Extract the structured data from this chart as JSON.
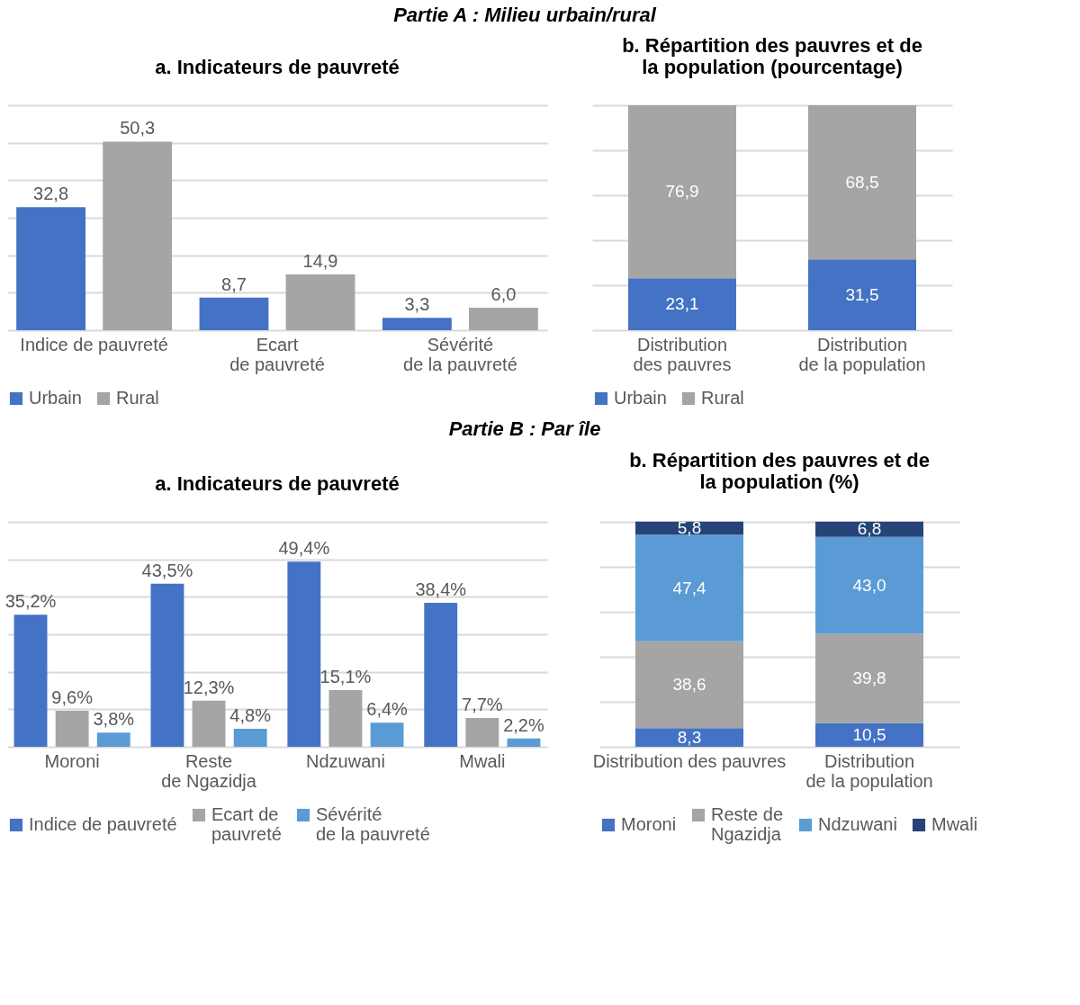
{
  "chart_data": [
    {
      "type": "bar",
      "title": "a. Indicateurs de pauvreté",
      "annotations": [
        "Partie A : Milieu urbain/rural"
      ],
      "categories": [
        "Indice de pauvreté",
        "Ecart\nde pauvreté",
        "Sévérité\nde la pauvreté"
      ],
      "series": [
        {
          "name": "Urbain",
          "color": "#4472c4",
          "values": [
            32.8,
            8.7,
            3.3
          ],
          "value_labels": [
            "32,8",
            "8,7",
            "3,3"
          ]
        },
        {
          "name": "Rural",
          "color": "#a5a5a5",
          "values": [
            50.3,
            14.9,
            6.0
          ],
          "value_labels": [
            "50,3",
            "14,9",
            "6,0"
          ]
        }
      ],
      "ylim": [
        0,
        60
      ],
      "yticks": [
        {
          "value": 0,
          "label": null
        },
        {
          "value": 10,
          "label": null
        },
        {
          "value": 20,
          "label": null
        },
        {
          "value": 30,
          "label": null
        },
        {
          "value": 40,
          "label": null
        },
        {
          "value": 50,
          "label": null
        },
        {
          "value": 60,
          "label": null
        }
      ],
      "grid": "y",
      "tick_labels": "x",
      "legend": "bottom"
    },
    {
      "type": "bar",
      "title": "b. Répartition des pauvres et de la population (pourcentage)",
      "stacked": true,
      "categories": [
        "Distribution\ndes pauvres",
        "Distribution\nde la population"
      ],
      "series": [
        {
          "name": "Urbain",
          "color": "#4472c4",
          "values": [
            23.1,
            31.5
          ],
          "value_labels": [
            "23,1",
            "31,5"
          ]
        },
        {
          "name": "Rural",
          "color": "#a5a5a5",
          "values": [
            76.9,
            68.5
          ],
          "value_labels": [
            "76,9",
            "68,5"
          ]
        }
      ],
      "ylim": [
        0,
        100
      ],
      "yticks": [
        {
          "value": 0,
          "label": null
        },
        {
          "value": 20,
          "label": null
        },
        {
          "value": 40,
          "label": null
        },
        {
          "value": 60,
          "label": null
        },
        {
          "value": 80,
          "label": null
        },
        {
          "value": 100,
          "label": null
        }
      ],
      "grid": "y",
      "tick_labels": "x",
      "legend": "bottom"
    },
    {
      "type": "bar",
      "title": "a. Indicateurs de pauvreté",
      "annotations": [
        "Partie B : Par île"
      ],
      "categories": [
        "Moroni",
        "Reste\nde Ngazidja",
        "Ndzuwani",
        "Mwali"
      ],
      "series": [
        {
          "name": "Indice de pauvreté",
          "color": "#4472c4",
          "values": [
            35.2,
            43.5,
            49.4,
            38.4
          ],
          "value_labels": [
            "35,2%",
            "43,5%",
            "49,4%",
            "38,4%"
          ]
        },
        {
          "name": "Ecart de\npauvreté",
          "color": "#a5a5a5",
          "values": [
            9.6,
            12.3,
            15.1,
            7.7
          ],
          "value_labels": [
            "9,6%",
            "12,3%",
            "15,1%",
            "7,7%"
          ]
        },
        {
          "name": "Sévérité\nde la pauvreté",
          "color": "#5b9bd5",
          "values": [
            3.8,
            4.8,
            6.4,
            2.2
          ],
          "value_labels": [
            "3,8%",
            "4,8%",
            "6,4%",
            "2,2%"
          ]
        }
      ],
      "ylim": [
        0,
        60
      ],
      "yticks": [
        {
          "value": 0,
          "label": null
        },
        {
          "value": 10,
          "label": null
        },
        {
          "value": 20,
          "label": null
        },
        {
          "value": 30,
          "label": null
        },
        {
          "value": 40,
          "label": null
        },
        {
          "value": 50,
          "label": null
        },
        {
          "value": 60,
          "label": null
        }
      ],
      "grid": "y",
      "tick_labels": "x",
      "legend": "bottom"
    },
    {
      "type": "bar",
      "title": "b. Répartition des pauvres et de la population (%)",
      "stacked": true,
      "categories": [
        "Distribution des pauvres",
        "Distribution\nde la population"
      ],
      "series": [
        {
          "name": "Moroni",
          "color": "#4472c4",
          "values": [
            8.3,
            10.5
          ],
          "value_labels": [
            "8,3",
            "10,5"
          ]
        },
        {
          "name": "Reste de\nNgazidja",
          "color": "#a5a5a5",
          "values": [
            38.6,
            39.8
          ],
          "value_labels": [
            "38,6",
            "39,8"
          ]
        },
        {
          "name": "Ndzuwani",
          "color": "#5b9bd5",
          "values": [
            47.4,
            43.0
          ],
          "value_labels": [
            "47,4",
            "43,0"
          ]
        },
        {
          "name": "Mwali",
          "color": "#264478",
          "values": [
            5.8,
            6.8
          ],
          "value_labels": [
            "5,8",
            "6,8"
          ]
        }
      ],
      "ylim": [
        0,
        100
      ],
      "yticks": [
        {
          "value": 0,
          "label": null
        },
        {
          "value": 20,
          "label": null
        },
        {
          "value": 40,
          "label": null
        },
        {
          "value": 60,
          "label": null
        },
        {
          "value": 80,
          "label": null
        },
        {
          "value": 100,
          "label": null
        }
      ],
      "grid": "y",
      "tick_labels": "x",
      "legend": "bottom"
    }
  ]
}
